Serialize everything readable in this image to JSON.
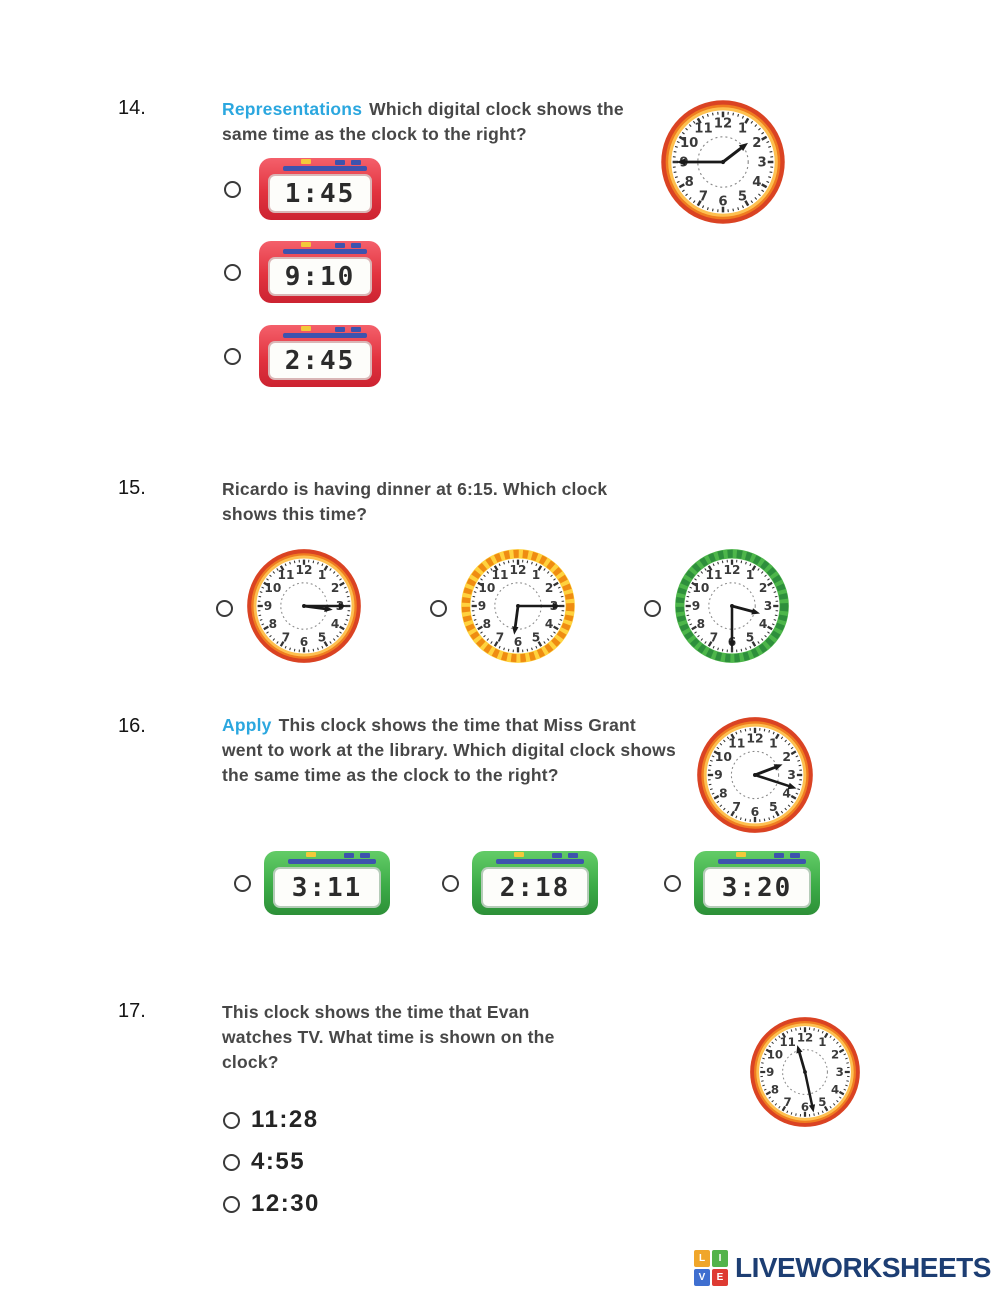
{
  "clock_styles": {
    "orange": {
      "outer": "#da4323",
      "mid": "#f07d20",
      "inner": "#fdc050",
      "face": "#ffffff"
    },
    "yellow": {
      "outer": "#ffd23e",
      "pattern": "#ef8c12",
      "face": "#ffffff"
    },
    "green": {
      "outer": "#4db64a",
      "pattern": "#2e8f3c",
      "face": "#ffffff"
    }
  },
  "q14": {
    "number": "14.",
    "keyword": "Representations",
    "question": "Which digital clock shows the same time as the clock to the right?",
    "analog_clock": {
      "time": "1:45",
      "hour_angle": 52.5,
      "minute_angle": 270,
      "rim": "orange",
      "size": 126
    },
    "options": [
      {
        "time": "1:45"
      },
      {
        "time": "9:10"
      },
      {
        "time": "2:45"
      }
    ]
  },
  "q15": {
    "number": "15.",
    "question": "Ricardo is having dinner at 6:15. Which clock shows this time?",
    "clocks": [
      {
        "time": "3:15",
        "hour_angle": 97.5,
        "minute_angle": 90,
        "rim": "orange",
        "size": 116
      },
      {
        "time": "6:15",
        "hour_angle": 187.5,
        "minute_angle": 90,
        "rim": "yellow",
        "size": 116
      },
      {
        "time": "3:30",
        "hour_angle": 105,
        "minute_angle": 180,
        "rim": "green",
        "size": 116
      }
    ]
  },
  "q16": {
    "number": "16.",
    "keyword": "Apply",
    "question": "This clock shows the time that Miss Grant went to work at the library. Which digital clock shows the same time as the clock to the right?",
    "analog_clock": {
      "time": "2:18",
      "hour_angle": 69,
      "minute_angle": 108,
      "rim": "orange",
      "size": 118
    },
    "options": [
      {
        "time": "3:11"
      },
      {
        "time": "2:18"
      },
      {
        "time": "3:20"
      }
    ]
  },
  "q17": {
    "number": "17.",
    "question": "This clock shows the time that Evan watches TV. What time is shown on the clock?",
    "analog_clock": {
      "time": "11:28",
      "hour_angle": 344,
      "minute_angle": 168,
      "rim": "orange",
      "size": 112
    },
    "options": [
      {
        "label": "11:28"
      },
      {
        "label": "4:55"
      },
      {
        "label": "12:30"
      }
    ]
  },
  "footer": {
    "brand": "LIVEWORKSHEETS",
    "tiles": [
      {
        "letter": "L",
        "color": "#f0a62a"
      },
      {
        "letter": "I",
        "color": "#53b34a"
      },
      {
        "letter": "V",
        "color": "#3f6fd0"
      },
      {
        "letter": "E",
        "color": "#de3b33"
      }
    ]
  }
}
